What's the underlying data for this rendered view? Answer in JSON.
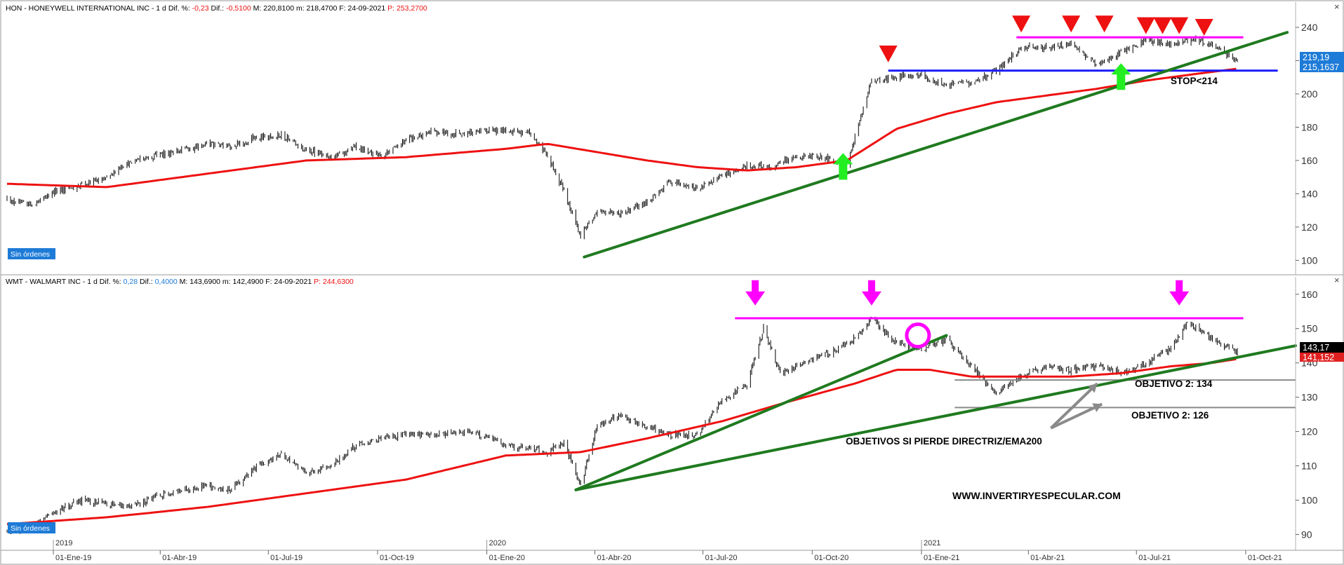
{
  "window": {
    "close_glyph": "×"
  },
  "panels": [
    {
      "id": "hon",
      "header": {
        "ticker_name": "HON - HONEYWELL INTERNATIONAL INC - ",
        "interval": " 1 d ",
        "dif_pct_label": "Dif. %: ",
        "dif_pct_value": "-0,23",
        "dif_label": " Dif.: ",
        "dif_value": "-0,5100",
        "max_label": " M: 220,8100",
        "min_label": " m: 218,4700",
        "date_label": " F: 24-09-2021",
        "p_label": " P: 253,2700"
      },
      "badge": "Sin órdenes",
      "price_last": "219,19",
      "price_ema": "215,1637",
      "annotations": [
        {
          "text": "STOP<214"
        }
      ]
    },
    {
      "id": "wmt",
      "header": {
        "ticker_name": "WMT - WALMART INC - ",
        "interval": " 1 d ",
        "dif_pct_label": "Dif. %: ",
        "dif_pct_value": "0,28",
        "dif_label": " Dif.: ",
        "dif_value": "0,4000",
        "max_label": " M: 143,6900",
        "min_label": " m: 142,4900",
        "date_label": " F: 24-09-2021",
        "p_label": " P: 244,6300"
      },
      "badge": "Sin órdenes",
      "price_last": "143,17",
      "price_ema": "141,152",
      "annotations": [
        {
          "text": "OBJETIVO 2: 134"
        },
        {
          "text": "OBJETIVO 2: 126"
        },
        {
          "text": "OBJETIVOS SI PIERDE DIRECTRIZ/EMA200"
        },
        {
          "text": "WWW.INVERTIRYESPECULAR.COM"
        }
      ]
    }
  ],
  "colors": {
    "ema": "#ee1111",
    "trend": "#1f7a1f",
    "resistance": "#ff00ff",
    "support": "#1a1aff",
    "down_marker": "#ee1111",
    "up_marker": "#22ee22",
    "price_tag": "#1e7bd7",
    "ema_tag": "#e02020",
    "wmt_tag": "#000000",
    "neg": "#ee1111",
    "pos": "#1e7bd7"
  },
  "chart_data": [
    {
      "type": "line",
      "series": [
        {
          "kind": "candlestick",
          "values_as": "close",
          "x": [
            "2018-11-23",
            "2018-12-14",
            "2019-01-04",
            "2019-01-25",
            "2019-02-15",
            "2019-03-08",
            "2019-03-29",
            "2019-04-19",
            "2019-05-10",
            "2019-05-31",
            "2019-06-21",
            "2019-07-12",
            "2019-08-02",
            "2019-08-23",
            "2019-09-13",
            "2019-10-04",
            "2019-10-25",
            "2019-11-15",
            "2019-12-06",
            "2019-12-27",
            "2020-01-17",
            "2020-02-07",
            "2020-02-21",
            "2020-03-06",
            "2020-03-20",
            "2020-04-03",
            "2020-04-24",
            "2020-05-15",
            "2020-06-05",
            "2020-06-26",
            "2020-07-17",
            "2020-08-07",
            "2020-08-28",
            "2020-09-18",
            "2020-10-09",
            "2020-10-30",
            "2020-11-20",
            "2020-12-11",
            "2021-01-01",
            "2021-01-22",
            "2021-02-12",
            "2021-03-05",
            "2021-03-26",
            "2021-04-16",
            "2021-05-07",
            "2021-05-28",
            "2021-06-18",
            "2021-07-09",
            "2021-07-30",
            "2021-08-20",
            "2021-09-10",
            "2021-09-24"
          ],
          "values": [
            136,
            133,
            142,
            145,
            150,
            159,
            163,
            166,
            170,
            168,
            174,
            175,
            166,
            162,
            168,
            162,
            172,
            177,
            176,
            178,
            178,
            176,
            162,
            142,
            115,
            130,
            128,
            135,
            148,
            143,
            151,
            157,
            156,
            163,
            162,
            158,
            208,
            210,
            211,
            205,
            207,
            214,
            228,
            228,
            230,
            218,
            225,
            232,
            230,
            233,
            226,
            219.19
          ]
        },
        {
          "name": "",
          "kind": "ema200",
          "x": [
            "2018-11-23",
            "2019-02-15",
            "2019-05-10",
            "2019-08-02",
            "2019-10-25",
            "2020-01-17",
            "2020-02-21",
            "2020-04-03",
            "2020-05-15",
            "2020-06-26",
            "2020-08-07",
            "2020-09-18",
            "2020-10-30",
            "2020-12-11",
            "2021-01-22",
            "2021-03-05",
            "2021-04-16",
            "2021-05-28",
            "2021-07-09",
            "2021-08-20",
            "2021-09-24"
          ],
          "values": [
            146,
            144,
            152,
            160,
            162,
            167,
            170,
            165,
            160,
            156,
            154,
            156,
            160,
            179,
            188,
            195,
            199,
            203,
            208,
            212,
            215.16
          ]
        }
      ],
      "xlim": [
        "2018-11-23",
        "2021-11-12"
      ],
      "ylim": [
        93,
        248
      ],
      "y_ticks": [
        100,
        120,
        140,
        160,
        180,
        200,
        220,
        240
      ],
      "x_tick_labels": [
        "01-Ene-19",
        "01-Abr-19",
        "01-Jul-19",
        "01-Oct-19",
        "01-Ene-20",
        "01-Abr-20",
        "01-Jul-20",
        "01-Oct-20",
        "01-Ene-21",
        "01-Abr-21",
        "01-Jul-21",
        "01-Oct-21"
      ],
      "x_tick_dates": [
        "2019-01-01",
        "2019-04-01",
        "2019-07-01",
        "2019-10-01",
        "2020-01-01",
        "2020-04-01",
        "2020-07-01",
        "2020-10-01",
        "2021-01-01",
        "2021-04-01",
        "2021-07-01",
        "2021-10-01"
      ],
      "year_labels": [
        {
          "date": "2019-01-01",
          "text": "2019"
        },
        {
          "date": "2020-01-01",
          "text": "2020"
        },
        {
          "date": "2021-01-01",
          "text": "2021"
        }
      ],
      "trendlines": [
        {
          "x1": "2020-03-23",
          "y1": 102,
          "x2": "2021-11-05",
          "y2": 237,
          "color": "trend"
        }
      ],
      "hlines": [
        {
          "x1": "2020-12-04",
          "x2": "2021-10-28",
          "y": 214,
          "color": "support"
        },
        {
          "x1": "2021-03-22",
          "x2": "2021-09-29",
          "y": 234,
          "color": "resistance"
        }
      ],
      "markers": [
        {
          "type": "down",
          "x": "2020-12-04",
          "y": 224
        },
        {
          "type": "down",
          "x": "2021-03-26",
          "y": 242
        },
        {
          "type": "down",
          "x": "2021-05-07",
          "y": 242
        },
        {
          "type": "down",
          "x": "2021-06-04",
          "y": 242
        },
        {
          "type": "down",
          "x": "2021-07-09",
          "y": 241
        },
        {
          "type": "down",
          "x": "2021-07-23",
          "y": 241
        },
        {
          "type": "down",
          "x": "2021-08-06",
          "y": 241
        },
        {
          "type": "down",
          "x": "2021-08-27",
          "y": 240
        },
        {
          "type": "up",
          "x": "2020-10-27",
          "y": 156
        },
        {
          "type": "up",
          "x": "2021-06-18",
          "y": 210
        }
      ]
    },
    {
      "type": "line",
      "series": [
        {
          "kind": "candlestick",
          "values_as": "close",
          "x": [
            "2018-11-23",
            "2018-12-14",
            "2019-01-04",
            "2019-01-25",
            "2019-02-15",
            "2019-03-08",
            "2019-03-29",
            "2019-04-19",
            "2019-05-10",
            "2019-05-31",
            "2019-06-21",
            "2019-07-12",
            "2019-08-02",
            "2019-08-23",
            "2019-09-13",
            "2019-10-04",
            "2019-10-25",
            "2019-11-15",
            "2019-12-06",
            "2019-12-27",
            "2020-01-17",
            "2020-02-07",
            "2020-02-21",
            "2020-03-06",
            "2020-03-20",
            "2020-04-03",
            "2020-04-24",
            "2020-05-15",
            "2020-06-05",
            "2020-06-26",
            "2020-07-17",
            "2020-08-07",
            "2020-08-21",
            "2020-09-04",
            "2020-09-25",
            "2020-10-16",
            "2020-11-06",
            "2020-11-20",
            "2020-12-11",
            "2021-01-01",
            "2021-01-22",
            "2021-02-12",
            "2021-03-05",
            "2021-03-26",
            "2021-04-16",
            "2021-05-07",
            "2021-05-28",
            "2021-06-18",
            "2021-07-09",
            "2021-07-30",
            "2021-08-13",
            "2021-09-03",
            "2021-09-24"
          ],
          "values": [
            91,
            92,
            97,
            100,
            99,
            98,
            101,
            103,
            104,
            103,
            110,
            113,
            108,
            110,
            116,
            118,
            119,
            119,
            120,
            119,
            116,
            115,
            114,
            117,
            104,
            122,
            125,
            121,
            119,
            119,
            129,
            134,
            150,
            137,
            140,
            143,
            147,
            153,
            146,
            144,
            147,
            139,
            131,
            136,
            139,
            138,
            139,
            137,
            140,
            144,
            152,
            147,
            143.17
          ]
        },
        {
          "name": "",
          "kind": "ema200",
          "x": [
            "2018-11-23",
            "2019-02-15",
            "2019-05-10",
            "2019-08-02",
            "2019-10-25",
            "2020-01-17",
            "2020-03-20",
            "2020-05-15",
            "2020-07-17",
            "2020-09-04",
            "2020-11-06",
            "2020-12-11",
            "2021-01-08",
            "2021-02-12",
            "2021-03-26",
            "2021-05-07",
            "2021-06-18",
            "2021-07-30",
            "2021-09-03",
            "2021-09-24"
          ],
          "values": [
            93,
            95,
            98,
            102,
            106,
            113,
            114,
            118,
            123,
            128,
            134,
            138,
            138,
            136,
            136,
            136,
            137,
            139,
            140,
            141.15
          ]
        }
      ],
      "xlim": [
        "2018-11-23",
        "2021-11-12"
      ],
      "ylim": [
        86,
        162
      ],
      "y_ticks": [
        90,
        100,
        110,
        120,
        130,
        140,
        150,
        160
      ],
      "x_tick_labels": [
        "01-Ene-19",
        "01-Abr-19",
        "01-Jul-19",
        "01-Oct-19",
        "01-Ene-20",
        "01-Abr-20",
        "01-Jul-20",
        "01-Oct-20",
        "01-Ene-21",
        "01-Abr-21",
        "01-Jul-21",
        "01-Oct-21"
      ],
      "x_tick_dates": [
        "2019-01-01",
        "2019-04-01",
        "2019-07-01",
        "2019-10-01",
        "2020-01-01",
        "2020-04-01",
        "2020-07-01",
        "2020-10-01",
        "2021-01-01",
        "2021-04-01",
        "2021-07-01",
        "2021-10-01"
      ],
      "year_labels": [
        {
          "date": "2019-01-01",
          "text": "2019"
        },
        {
          "date": "2020-01-01",
          "text": "2020"
        },
        {
          "date": "2021-01-01",
          "text": "2021"
        }
      ],
      "trendlines": [
        {
          "x1": "2020-03-16",
          "y1": 103,
          "x2": "2021-11-12",
          "y2": 145,
          "color": "trend"
        },
        {
          "x1": "2020-03-16",
          "y1": 103,
          "x2": "2021-01-22",
          "y2": 148,
          "color": "trend"
        }
      ],
      "hlines": [
        {
          "x1": "2020-07-28",
          "x2": "2021-09-29",
          "y": 153,
          "color": "resistance"
        },
        {
          "x1": "2021-01-29",
          "x2": "2021-11-12",
          "y": 135,
          "color": "gray"
        },
        {
          "x1": "2021-01-29",
          "x2": "2021-11-12",
          "y": 127,
          "color": "gray"
        }
      ],
      "markers": [
        {
          "type": "down_arrow",
          "x": "2020-08-14",
          "y": 160
        },
        {
          "type": "down_arrow",
          "x": "2020-11-20",
          "y": 160
        },
        {
          "type": "down_arrow",
          "x": "2021-08-06",
          "y": 160
        },
        {
          "type": "circle",
          "x": "2020-12-29",
          "y": 148
        }
      ],
      "arrows": [
        {
          "x1": "2021-04-20",
          "y1": 121,
          "x2": "2021-05-29",
          "y2": 134
        },
        {
          "x1": "2021-04-20",
          "y1": 121,
          "x2": "2021-06-02",
          "y2": 128
        }
      ]
    }
  ]
}
